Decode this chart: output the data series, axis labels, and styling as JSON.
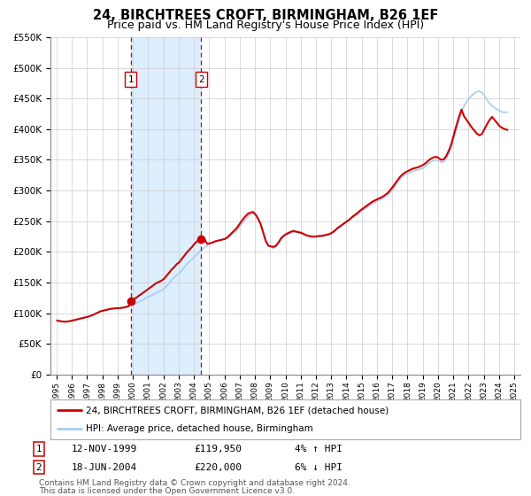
{
  "title": "24, BIRCHTREES CROFT, BIRMINGHAM, B26 1EF",
  "subtitle": "Price paid vs. HM Land Registry's House Price Index (HPI)",
  "title_fontsize": 10.5,
  "subtitle_fontsize": 9,
  "ylim": [
    0,
    550000
  ],
  "yticks": [
    0,
    50000,
    100000,
    150000,
    200000,
    250000,
    300000,
    350000,
    400000,
    450000,
    500000,
    550000
  ],
  "ytick_labels": [
    "£0",
    "£50K",
    "£100K",
    "£150K",
    "£200K",
    "£250K",
    "£300K",
    "£350K",
    "£400K",
    "£450K",
    "£500K",
    "£550K"
  ],
  "xlim_start": 1994.6,
  "xlim_end": 2025.4,
  "xticks": [
    1995,
    1996,
    1997,
    1998,
    1999,
    2000,
    2001,
    2002,
    2003,
    2004,
    2005,
    2006,
    2007,
    2008,
    2009,
    2010,
    2011,
    2012,
    2013,
    2014,
    2015,
    2016,
    2017,
    2018,
    2019,
    2020,
    2021,
    2022,
    2023,
    2024,
    2025
  ],
  "red_line_color": "#cc0000",
  "blue_line_color": "#aaccee",
  "grid_color": "#cccccc",
  "bg_color": "#ffffff",
  "shade_color": "#ddeeff",
  "transaction1_x": 1999.87,
  "transaction1_y": 119950,
  "transaction1_label": "1",
  "transaction1_date": "12-NOV-1999",
  "transaction1_price": "£119,950",
  "transaction1_hpi": "4% ↑ HPI",
  "transaction2_x": 2004.47,
  "transaction2_y": 220000,
  "transaction2_label": "2",
  "transaction2_date": "18-JUN-2004",
  "transaction2_price": "£220,000",
  "transaction2_hpi": "6% ↓ HPI",
  "legend_label_red": "24, BIRCHTREES CROFT, BIRMINGHAM, B26 1EF (detached house)",
  "legend_label_blue": "HPI: Average price, detached house, Birmingham",
  "footer_line1": "Contains HM Land Registry data © Crown copyright and database right 2024.",
  "footer_line2": "This data is licensed under the Open Government Licence v3.0.",
  "hpi_data": {
    "dates": [
      1995.04,
      1995.21,
      1995.38,
      1995.54,
      1995.71,
      1995.88,
      1996.04,
      1996.21,
      1996.38,
      1996.54,
      1996.71,
      1996.88,
      1997.04,
      1997.21,
      1997.38,
      1997.54,
      1997.71,
      1997.88,
      1998.04,
      1998.21,
      1998.38,
      1998.54,
      1998.71,
      1998.88,
      1999.04,
      1999.21,
      1999.38,
      1999.54,
      1999.71,
      1999.88,
      2000.04,
      2000.21,
      2000.38,
      2000.54,
      2000.71,
      2000.88,
      2001.04,
      2001.21,
      2001.38,
      2001.54,
      2001.71,
      2001.88,
      2002.04,
      2002.21,
      2002.38,
      2002.54,
      2002.71,
      2002.88,
      2003.04,
      2003.21,
      2003.38,
      2003.54,
      2003.71,
      2003.88,
      2004.04,
      2004.21,
      2004.38,
      2004.54,
      2004.71,
      2004.88,
      2005.04,
      2005.21,
      2005.38,
      2005.54,
      2005.71,
      2005.88,
      2006.04,
      2006.21,
      2006.38,
      2006.54,
      2006.71,
      2006.88,
      2007.04,
      2007.21,
      2007.38,
      2007.54,
      2007.71,
      2007.88,
      2008.04,
      2008.21,
      2008.38,
      2008.54,
      2008.71,
      2008.88,
      2009.04,
      2009.21,
      2009.38,
      2009.54,
      2009.71,
      2009.88,
      2010.04,
      2010.21,
      2010.38,
      2010.54,
      2010.71,
      2010.88,
      2011.04,
      2011.21,
      2011.38,
      2011.54,
      2011.71,
      2011.88,
      2012.04,
      2012.21,
      2012.38,
      2012.54,
      2012.71,
      2012.88,
      2013.04,
      2013.21,
      2013.38,
      2013.54,
      2013.71,
      2013.88,
      2014.04,
      2014.21,
      2014.38,
      2014.54,
      2014.71,
      2014.88,
      2015.04,
      2015.21,
      2015.38,
      2015.54,
      2015.71,
      2015.88,
      2016.04,
      2016.21,
      2016.38,
      2016.54,
      2016.71,
      2016.88,
      2017.04,
      2017.21,
      2017.38,
      2017.54,
      2017.71,
      2017.88,
      2018.04,
      2018.21,
      2018.38,
      2018.54,
      2018.71,
      2018.88,
      2019.04,
      2019.21,
      2019.38,
      2019.54,
      2019.71,
      2019.88,
      2020.04,
      2020.21,
      2020.38,
      2020.54,
      2020.71,
      2020.88,
      2021.04,
      2021.21,
      2021.38,
      2021.54,
      2021.71,
      2021.88,
      2022.04,
      2022.21,
      2022.38,
      2022.54,
      2022.71,
      2022.88,
      2023.04,
      2023.21,
      2023.38,
      2023.54,
      2023.71,
      2023.88,
      2024.04,
      2024.21,
      2024.38,
      2024.54
    ],
    "values": [
      88000,
      87000,
      86500,
      86000,
      86500,
      87000,
      88000,
      89000,
      90000,
      91000,
      92000,
      93000,
      94000,
      95500,
      97000,
      99000,
      101000,
      103000,
      104000,
      105000,
      106000,
      107000,
      107500,
      108000,
      108000,
      108500,
      109000,
      110000,
      111000,
      112000,
      114000,
      116000,
      118000,
      120000,
      122000,
      125000,
      127000,
      129000,
      131000,
      133000,
      135000,
      137000,
      140000,
      144000,
      149000,
      154000,
      158000,
      162000,
      165000,
      170000,
      175000,
      180000,
      184000,
      188000,
      192000,
      196000,
      200000,
      204000,
      207000,
      210000,
      213000,
      215000,
      217000,
      218000,
      219000,
      220000,
      221000,
      223000,
      226000,
      229000,
      232000,
      237000,
      242000,
      248000,
      253000,
      258000,
      261000,
      263000,
      260000,
      254000,
      245000,
      232000,
      218000,
      210000,
      208000,
      206000,
      208000,
      213000,
      220000,
      225000,
      227000,
      229000,
      231000,
      232000,
      232000,
      231000,
      230000,
      228000,
      226000,
      225000,
      224000,
      224000,
      224000,
      225000,
      225000,
      226000,
      227000,
      228000,
      230000,
      233000,
      237000,
      240000,
      243000,
      246000,
      249000,
      252000,
      255000,
      258000,
      261000,
      264000,
      267000,
      270000,
      273000,
      276000,
      279000,
      281000,
      283000,
      285000,
      287000,
      290000,
      293000,
      297000,
      302000,
      308000,
      314000,
      319000,
      323000,
      326000,
      328000,
      330000,
      332000,
      333000,
      334000,
      335000,
      337000,
      340000,
      344000,
      347000,
      349000,
      350000,
      348000,
      346000,
      347000,
      352000,
      360000,
      370000,
      385000,
      400000,
      415000,
      428000,
      438000,
      445000,
      450000,
      455000,
      458000,
      461000,
      462000,
      460000,
      455000,
      448000,
      442000,
      438000,
      435000,
      432000,
      430000,
      428000,
      427000,
      428000
    ]
  },
  "red_data": {
    "dates": [
      1995.04,
      1995.21,
      1995.38,
      1995.54,
      1995.71,
      1995.88,
      1996.04,
      1996.21,
      1996.38,
      1996.54,
      1996.71,
      1996.88,
      1997.04,
      1997.21,
      1997.38,
      1997.54,
      1997.71,
      1997.88,
      1998.04,
      1998.21,
      1998.38,
      1998.54,
      1998.71,
      1998.88,
      1999.04,
      1999.21,
      1999.38,
      1999.54,
      1999.71,
      1999.88,
      2000.04,
      2000.21,
      2000.38,
      2000.54,
      2000.71,
      2000.88,
      2001.04,
      2001.21,
      2001.38,
      2001.54,
      2001.71,
      2001.88,
      2002.04,
      2002.21,
      2002.38,
      2002.54,
      2002.71,
      2002.88,
      2003.04,
      2003.21,
      2003.38,
      2003.54,
      2003.71,
      2003.88,
      2004.04,
      2004.21,
      2004.38,
      2004.54,
      2004.71,
      2004.88,
      2005.04,
      2005.21,
      2005.38,
      2005.54,
      2005.71,
      2005.88,
      2006.04,
      2006.21,
      2006.38,
      2006.54,
      2006.71,
      2006.88,
      2007.04,
      2007.21,
      2007.38,
      2007.54,
      2007.71,
      2007.88,
      2008.04,
      2008.21,
      2008.38,
      2008.54,
      2008.71,
      2008.88,
      2009.04,
      2009.21,
      2009.38,
      2009.54,
      2009.71,
      2009.88,
      2010.04,
      2010.21,
      2010.38,
      2010.54,
      2010.71,
      2010.88,
      2011.04,
      2011.21,
      2011.38,
      2011.54,
      2011.71,
      2011.88,
      2012.04,
      2012.21,
      2012.38,
      2012.54,
      2012.71,
      2012.88,
      2013.04,
      2013.21,
      2013.38,
      2013.54,
      2013.71,
      2013.88,
      2014.04,
      2014.21,
      2014.38,
      2014.54,
      2014.71,
      2014.88,
      2015.04,
      2015.21,
      2015.38,
      2015.54,
      2015.71,
      2015.88,
      2016.04,
      2016.21,
      2016.38,
      2016.54,
      2016.71,
      2016.88,
      2017.04,
      2017.21,
      2017.38,
      2017.54,
      2017.71,
      2017.88,
      2018.04,
      2018.21,
      2018.38,
      2018.54,
      2018.71,
      2018.88,
      2019.04,
      2019.21,
      2019.38,
      2019.54,
      2019.71,
      2019.88,
      2020.04,
      2020.21,
      2020.38,
      2020.54,
      2020.71,
      2020.88,
      2021.04,
      2021.21,
      2021.38,
      2021.54,
      2021.71,
      2021.88,
      2022.04,
      2022.21,
      2022.38,
      2022.54,
      2022.71,
      2022.88,
      2023.04,
      2023.21,
      2023.38,
      2023.54,
      2023.71,
      2023.88,
      2024.04,
      2024.21,
      2024.38,
      2024.54
    ],
    "values": [
      88000,
      87000,
      86500,
      86000,
      86500,
      87000,
      88000,
      89000,
      90000,
      91000,
      92000,
      93000,
      94000,
      95500,
      97000,
      99000,
      101000,
      103000,
      104000,
      105000,
      106000,
      107000,
      107500,
      108000,
      108000,
      108500,
      109000,
      110000,
      111000,
      119950,
      122000,
      125000,
      128000,
      131000,
      134000,
      137000,
      140000,
      143000,
      146000,
      149000,
      151000,
      153000,
      156000,
      161000,
      166000,
      171000,
      175000,
      180000,
      183000,
      188500,
      194000,
      199000,
      203500,
      208000,
      213000,
      217000,
      221000,
      224500,
      220000,
      213000,
      214000,
      215000,
      217000,
      218000,
      219000,
      220000,
      221000,
      224000,
      228000,
      232000,
      236000,
      241000,
      247000,
      253000,
      258000,
      262000,
      264000,
      265000,
      261000,
      254000,
      245000,
      232000,
      218000,
      210000,
      209000,
      208000,
      210000,
      215000,
      222000,
      226000,
      229000,
      231000,
      233000,
      234000,
      233000,
      232000,
      231000,
      229000,
      227000,
      226000,
      225000,
      225000,
      225000,
      226000,
      226000,
      227000,
      228000,
      229000,
      231000,
      234000,
      238000,
      241000,
      244000,
      247000,
      250000,
      253000,
      257000,
      260000,
      263000,
      267000,
      270000,
      273000,
      276000,
      279000,
      282000,
      284000,
      286000,
      288000,
      290000,
      293000,
      296000,
      301000,
      306000,
      312000,
      318000,
      323000,
      327000,
      330000,
      332000,
      334000,
      336000,
      337000,
      338000,
      340000,
      342000,
      345000,
      349000,
      352000,
      354000,
      355000,
      353000,
      350000,
      351000,
      356000,
      365000,
      376000,
      391000,
      406000,
      420000,
      432000,
      421000,
      415000,
      409000,
      403000,
      398000,
      393000,
      390000,
      392000,
      400000,
      408000,
      415000,
      420000,
      415000,
      410000,
      405000,
      402000,
      400000,
      399000
    ]
  }
}
